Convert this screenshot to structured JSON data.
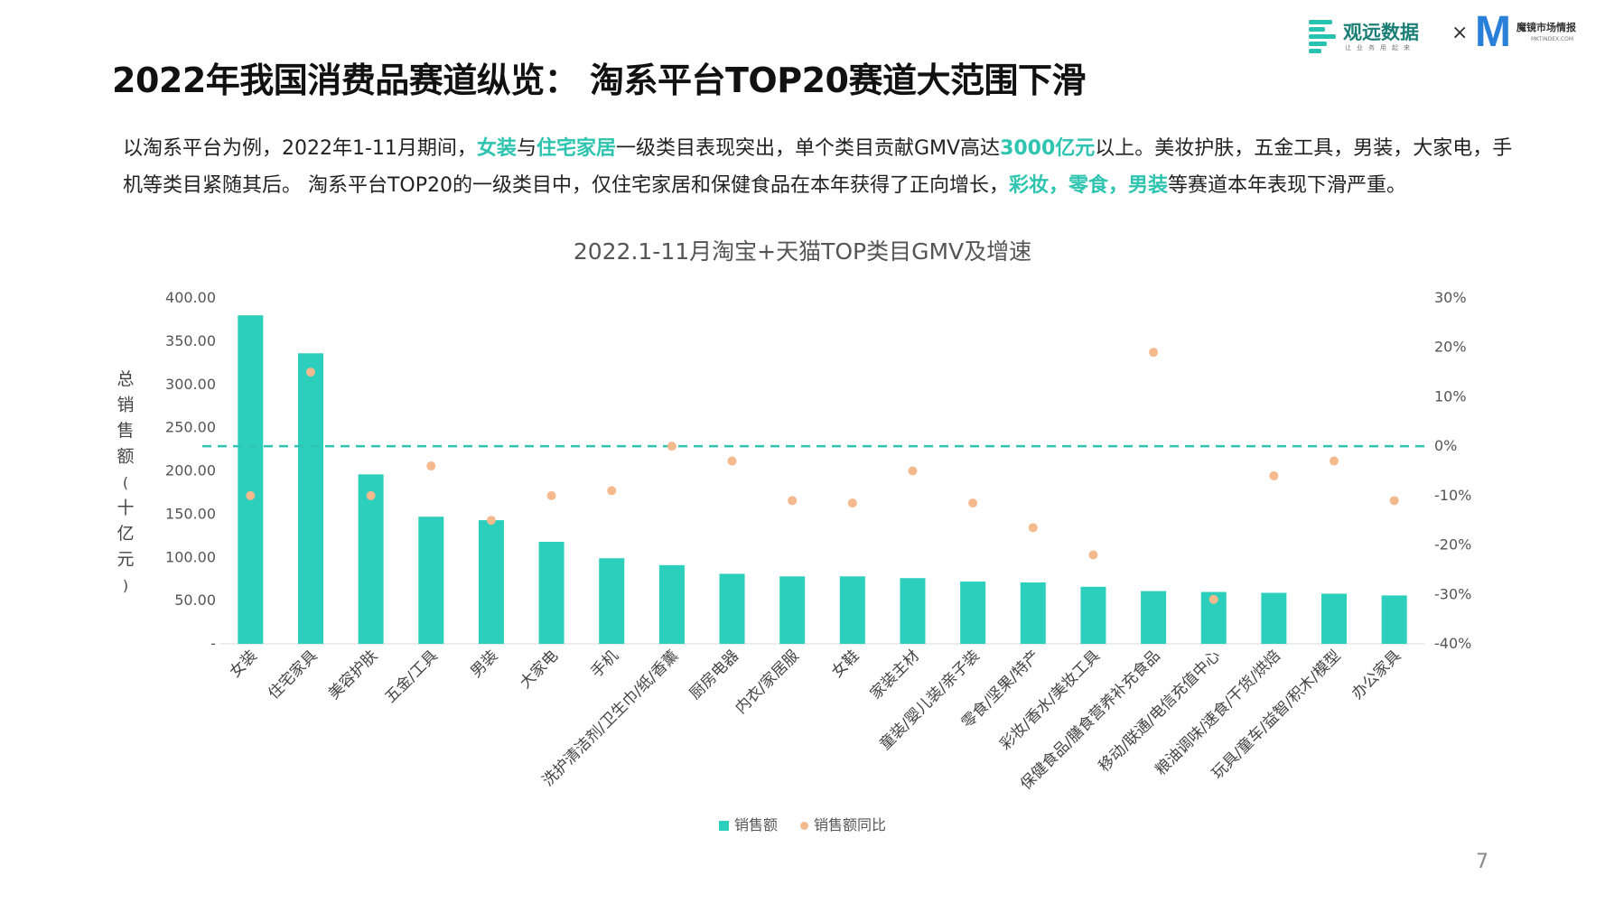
{
  "header": {
    "logo1_name": "观远数据",
    "logo1_sub": "让业务用起来",
    "times": "×",
    "logo2_mark": "M",
    "logo2_name": "魔镜市场情报",
    "logo2_domain": "MKTINDEX.COM"
  },
  "title": "2022年我国消费品赛道纵览： 淘系平台TOP20赛道大范围下滑",
  "description": {
    "p1": "以淘系平台为例，2022年1-11月期间，",
    "h1": "女装",
    "p2": "与",
    "h2": "住宅家居",
    "p3": "一级类目表现突出，单个类目贡献GMV高达",
    "h3": "3000亿元",
    "p4": "以上。美妆护肤，五金工具，男装，大家电，手机等类目紧随其后。 淘系平台TOP20的一级类目中，仅住宅家居和保健食品在本年获得了正向增长，",
    "h4": "彩妆，零食，男装",
    "p5": "等赛道本年表现下滑严重。"
  },
  "page_number": "7",
  "colors": {
    "bar": "#2ccfbc",
    "dot": "#f5b98e",
    "zero_line": "#2ec4b0",
    "highlight": "#2ec4b0"
  },
  "chart_data": {
    "type": "bar",
    "title": "2022.1-11月淘宝+天猫TOP类目GMV及增速",
    "ylabel": "总销售额（十亿元）",
    "ylim": [
      0,
      400
    ],
    "y_ticks": [
      "-",
      "50.00",
      "100.00",
      "150.00",
      "200.00",
      "250.00",
      "300.00",
      "350.00",
      "400.00"
    ],
    "y2lim": [
      -0.4,
      0.3
    ],
    "y2_ticks": [
      "-40%",
      "-30%",
      "-20%",
      "-10%",
      "0%",
      "10%",
      "20%",
      "30%"
    ],
    "legend_position": "bottom",
    "categories": [
      "女装",
      "住宅家具",
      "美容护肤",
      "五金/工具",
      "男装",
      "大家电",
      "手机",
      "洗护清洁剂/卫生巾/纸/香薰",
      "厨房电器",
      "内衣/家居服",
      "女鞋",
      "家装主材",
      "童装/婴儿装/亲子装",
      "零食/坚果/特产",
      "彩妆/香水/美妆工具",
      "保健食品/膳食营养补充食品",
      "移动/联通/电信充值中心",
      "粮油调味/速食/干货/烘焙",
      "玩具/童车/益智/积木/模型",
      "办公家具"
    ],
    "series": [
      {
        "name": "销售额",
        "type": "bar",
        "axis": "left",
        "values": [
          380,
          336,
          196,
          147,
          143,
          118,
          99,
          91,
          81,
          78,
          78,
          76,
          72,
          71,
          66,
          61,
          60,
          59,
          58,
          56
        ]
      },
      {
        "name": "销售额同比",
        "type": "scatter",
        "axis": "right",
        "values": [
          -0.1,
          0.15,
          -0.1,
          -0.04,
          -0.15,
          -0.1,
          -0.09,
          0.0,
          -0.03,
          -0.11,
          -0.115,
          -0.05,
          -0.115,
          -0.165,
          -0.22,
          0.19,
          -0.31,
          -0.06,
          -0.03,
          -0.11
        ]
      }
    ],
    "reference_line": {
      "axis": "right",
      "value": 0,
      "style": "dashed"
    }
  }
}
